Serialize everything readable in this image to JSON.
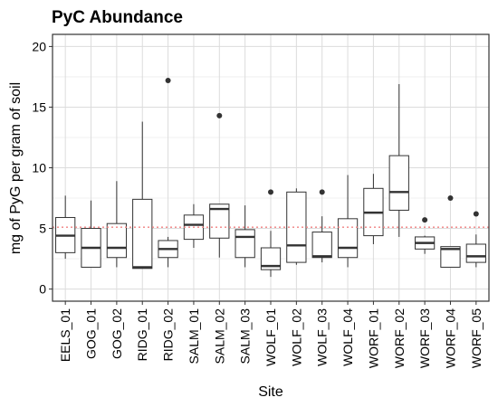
{
  "chart_data": {
    "type": "boxplot",
    "title": "PyC Abundance",
    "xlabel": "Site",
    "ylabel": "mg of PyG per gram of soil",
    "ylim": [
      -1,
      21
    ],
    "yticks": [
      0,
      5,
      10,
      15,
      20
    ],
    "reference_line": 5.1,
    "reference_color": "#f08080",
    "categories": [
      "EELS_01",
      "GOG_01",
      "GOG_02",
      "RIDG_01",
      "RIDG_02",
      "SALM_01",
      "SALM_02",
      "SALM_03",
      "WOLF_01",
      "WOLF_02",
      "WOLF_03",
      "WOLF_04",
      "WORF_01",
      "WORF_02",
      "WORF_03",
      "WORF_04",
      "WORF_05"
    ],
    "boxes": [
      {
        "min": 2.5,
        "q1": 3.0,
        "median": 4.4,
        "q3": 5.9,
        "max": 7.7,
        "outliers": []
      },
      {
        "min": 1.8,
        "q1": 1.8,
        "median": 3.4,
        "q3": 5.0,
        "max": 7.3,
        "outliers": []
      },
      {
        "min": 1.8,
        "q1": 2.6,
        "median": 3.4,
        "q3": 5.4,
        "max": 8.9,
        "outliers": []
      },
      {
        "min": 1.7,
        "q1": 1.7,
        "median": 1.8,
        "q3": 7.4,
        "max": 13.8,
        "outliers": []
      },
      {
        "min": 1.8,
        "q1": 2.6,
        "median": 3.3,
        "q3": 4.0,
        "max": 4.3,
        "outliers": [
          17.2
        ]
      },
      {
        "min": 3.4,
        "q1": 4.1,
        "median": 5.3,
        "q3": 6.1,
        "max": 7.0,
        "outliers": []
      },
      {
        "min": 2.6,
        "q1": 4.2,
        "median": 6.6,
        "q3": 7.0,
        "max": 7.0,
        "outliers": [
          14.3
        ]
      },
      {
        "min": 1.8,
        "q1": 2.6,
        "median": 4.3,
        "q3": 4.9,
        "max": 6.9,
        "outliers": []
      },
      {
        "min": 1.0,
        "q1": 1.6,
        "median": 1.9,
        "q3": 3.4,
        "max": 4.8,
        "outliers": [
          8.0
        ]
      },
      {
        "min": 2.0,
        "q1": 2.2,
        "median": 3.6,
        "q3": 8.0,
        "max": 8.3,
        "outliers": []
      },
      {
        "min": 2.2,
        "q1": 2.6,
        "median": 2.7,
        "q3": 4.7,
        "max": 6.0,
        "outliers": [
          8.0
        ]
      },
      {
        "min": 1.8,
        "q1": 2.6,
        "median": 3.4,
        "q3": 5.8,
        "max": 9.4,
        "outliers": []
      },
      {
        "min": 3.7,
        "q1": 4.4,
        "median": 6.3,
        "q3": 8.3,
        "max": 9.5,
        "outliers": []
      },
      {
        "min": 4.3,
        "q1": 6.5,
        "median": 8.0,
        "q3": 11.0,
        "max": 16.9,
        "outliers": []
      },
      {
        "min": 2.9,
        "q1": 3.3,
        "median": 3.8,
        "q3": 4.3,
        "max": 4.4,
        "outliers": [
          5.7
        ]
      },
      {
        "min": 1.8,
        "q1": 1.8,
        "median": 3.3,
        "q3": 3.5,
        "max": 3.5,
        "outliers": [
          7.5
        ]
      },
      {
        "min": 1.8,
        "q1": 2.2,
        "median": 2.7,
        "q3": 3.7,
        "max": 4.5,
        "outliers": [
          6.2
        ]
      }
    ]
  }
}
